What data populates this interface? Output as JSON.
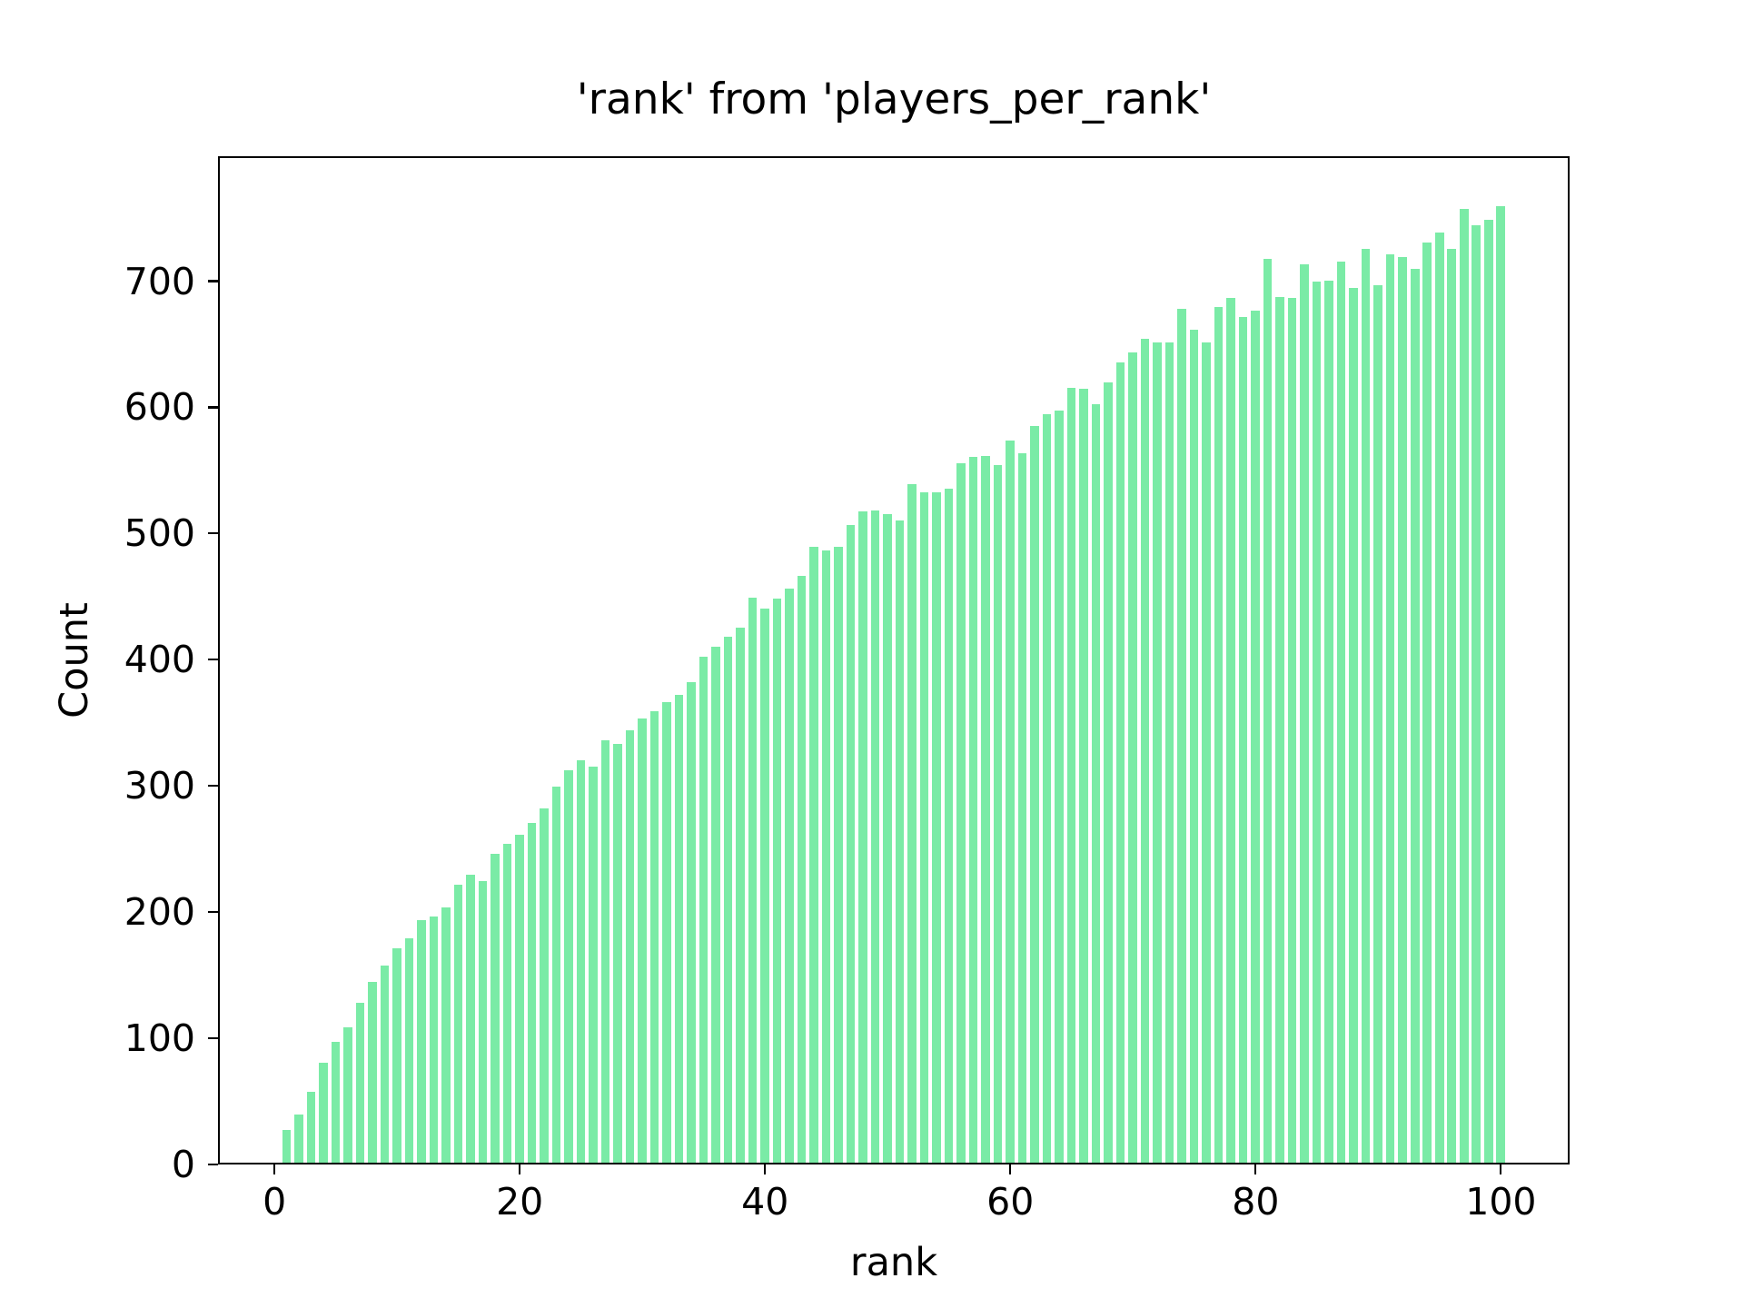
{
  "figure": {
    "background_color": "#ffffff",
    "bar_color": "#7aeba6",
    "axis_color": "#000000"
  },
  "chart_data": {
    "type": "bar",
    "title": "'rank' from 'players_per_rank'",
    "xlabel": "rank",
    "ylabel": "Count",
    "grid": false,
    "legend": null,
    "xlim": [
      -4.6,
      105.6
    ],
    "ylim": [
      0,
      799
    ],
    "xticks": [
      0,
      20,
      40,
      60,
      80,
      100
    ],
    "yticks": [
      0,
      100,
      200,
      300,
      400,
      500,
      600,
      700
    ],
    "x": [
      1,
      2,
      3,
      4,
      5,
      6,
      7,
      8,
      9,
      10,
      11,
      12,
      13,
      14,
      15,
      16,
      17,
      18,
      19,
      20,
      21,
      22,
      23,
      24,
      25,
      26,
      27,
      28,
      29,
      30,
      31,
      32,
      33,
      34,
      35,
      36,
      37,
      38,
      39,
      40,
      41,
      42,
      43,
      44,
      45,
      46,
      47,
      48,
      49,
      50,
      51,
      52,
      53,
      54,
      55,
      56,
      57,
      58,
      59,
      60,
      61,
      62,
      63,
      64,
      65,
      66,
      67,
      68,
      69,
      70,
      71,
      72,
      73,
      74,
      75,
      76,
      77,
      78,
      79,
      80,
      81,
      82,
      83,
      84,
      85,
      86,
      87,
      88,
      89,
      90,
      91,
      92,
      93,
      94,
      95,
      96,
      97,
      98,
      99,
      100
    ],
    "values": [
      26,
      38,
      56,
      79,
      96,
      107,
      127,
      143,
      156,
      170,
      178,
      192,
      195,
      202,
      220,
      228,
      223,
      245,
      253,
      260,
      269,
      281,
      298,
      311,
      319,
      314,
      335,
      332,
      343,
      352,
      358,
      365,
      371,
      381,
      401,
      409,
      417,
      424,
      448,
      439,
      447,
      455,
      465,
      488,
      485,
      488,
      505,
      516,
      517,
      514,
      509,
      538,
      531,
      531,
      534,
      554,
      559,
      560,
      553,
      572,
      562,
      584,
      593,
      596,
      614,
      613,
      601,
      618,
      634,
      642,
      653,
      650,
      650,
      677,
      660,
      650,
      678,
      685,
      670,
      675,
      716,
      686,
      685,
      712,
      698,
      699,
      714,
      693,
      724,
      695,
      720,
      718,
      708,
      729,
      737,
      724,
      756,
      743,
      747,
      758
    ]
  }
}
